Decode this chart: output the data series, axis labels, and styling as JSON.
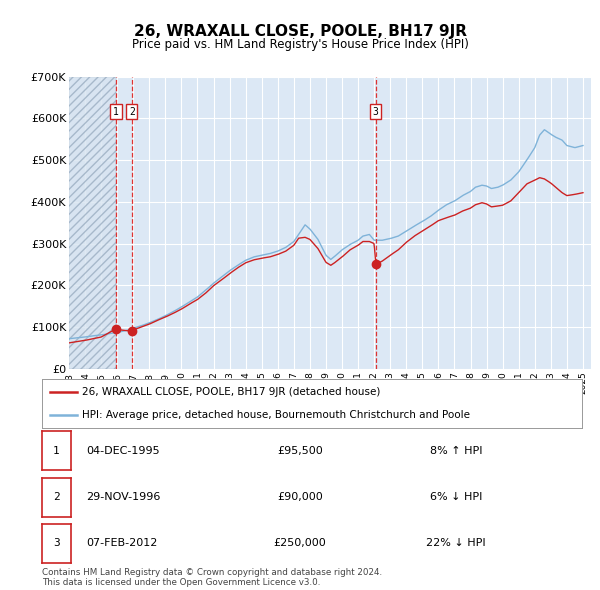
{
  "title": "26, WRAXALL CLOSE, POOLE, BH17 9JR",
  "subtitle": "Price paid vs. HM Land Registry's House Price Index (HPI)",
  "ylim": [
    0,
    700000
  ],
  "yticks": [
    0,
    100000,
    200000,
    300000,
    400000,
    500000,
    600000,
    700000
  ],
  "ytick_labels": [
    "£0",
    "£100K",
    "£200K",
    "£300K",
    "£400K",
    "£500K",
    "£600K",
    "£700K"
  ],
  "xlim_start": 1993.0,
  "xlim_end": 2025.5,
  "background_color": "#ffffff",
  "plot_bg_color": "#dce8f5",
  "grid_color": "#ffffff",
  "hpi_color": "#7fb3d9",
  "price_color": "#cc2222",
  "sale_marker_color": "#cc2222",
  "transaction_line_color": "#dd3333",
  "transactions": [
    {
      "id": "1",
      "date": 1995.92,
      "price": 95500
    },
    {
      "id": "2",
      "date": 1996.91,
      "price": 90000
    },
    {
      "id": "3",
      "date": 2012.1,
      "price": 250000
    }
  ],
  "table_entries": [
    {
      "id": "1",
      "date": "04-DEC-1995",
      "price": "£95,500",
      "change": "8% ↑ HPI"
    },
    {
      "id": "2",
      "date": "29-NOV-1996",
      "price": "£90,000",
      "change": "6% ↓ HPI"
    },
    {
      "id": "3",
      "date": "07-FEB-2012",
      "price": "£250,000",
      "change": "22% ↓ HPI"
    }
  ],
  "footer": "Contains HM Land Registry data © Crown copyright and database right 2024.\nThis data is licensed under the Open Government Licence v3.0.",
  "legend_line1": "26, WRAXALL CLOSE, POOLE, BH17 9JR (detached house)",
  "legend_line2": "HPI: Average price, detached house, Bournemouth Christchurch and Poole",
  "hatched_region_end": 1995.92,
  "hpi_anchors": [
    [
      1993.0,
      72000
    ],
    [
      1993.5,
      74000
    ],
    [
      1994.0,
      76000
    ],
    [
      1994.5,
      79000
    ],
    [
      1995.0,
      81000
    ],
    [
      1995.5,
      84000
    ],
    [
      1996.0,
      87000
    ],
    [
      1996.5,
      91000
    ],
    [
      1997.0,
      97000
    ],
    [
      1997.5,
      103000
    ],
    [
      1998.0,
      110000
    ],
    [
      1998.5,
      118000
    ],
    [
      1999.0,
      127000
    ],
    [
      1999.5,
      137000
    ],
    [
      2000.0,
      148000
    ],
    [
      2000.5,
      160000
    ],
    [
      2001.0,
      172000
    ],
    [
      2001.5,
      188000
    ],
    [
      2002.0,
      205000
    ],
    [
      2002.5,
      220000
    ],
    [
      2003.0,
      235000
    ],
    [
      2003.5,
      248000
    ],
    [
      2004.0,
      260000
    ],
    [
      2004.5,
      268000
    ],
    [
      2005.0,
      272000
    ],
    [
      2005.5,
      276000
    ],
    [
      2006.0,
      282000
    ],
    [
      2006.5,
      291000
    ],
    [
      2007.0,
      305000
    ],
    [
      2007.3,
      322000
    ],
    [
      2007.7,
      345000
    ],
    [
      2008.0,
      335000
    ],
    [
      2008.5,
      310000
    ],
    [
      2009.0,
      272000
    ],
    [
      2009.3,
      262000
    ],
    [
      2009.5,
      268000
    ],
    [
      2010.0,
      285000
    ],
    [
      2010.5,
      298000
    ],
    [
      2011.0,
      308000
    ],
    [
      2011.3,
      318000
    ],
    [
      2011.7,
      322000
    ],
    [
      2012.0,
      308000
    ],
    [
      2012.5,
      308000
    ],
    [
      2013.0,
      312000
    ],
    [
      2013.5,
      318000
    ],
    [
      2014.0,
      330000
    ],
    [
      2014.5,
      342000
    ],
    [
      2015.0,
      353000
    ],
    [
      2015.5,
      365000
    ],
    [
      2016.0,
      380000
    ],
    [
      2016.5,
      393000
    ],
    [
      2017.0,
      402000
    ],
    [
      2017.5,
      415000
    ],
    [
      2018.0,
      425000
    ],
    [
      2018.3,
      435000
    ],
    [
      2018.7,
      440000
    ],
    [
      2019.0,
      438000
    ],
    [
      2019.3,
      432000
    ],
    [
      2019.7,
      435000
    ],
    [
      2020.0,
      440000
    ],
    [
      2020.5,
      452000
    ],
    [
      2021.0,
      472000
    ],
    [
      2021.5,
      500000
    ],
    [
      2022.0,
      530000
    ],
    [
      2022.3,
      560000
    ],
    [
      2022.6,
      573000
    ],
    [
      2023.0,
      562000
    ],
    [
      2023.3,
      555000
    ],
    [
      2023.7,
      548000
    ],
    [
      2024.0,
      535000
    ],
    [
      2024.5,
      530000
    ],
    [
      2025.0,
      535000
    ]
  ],
  "price_anchors": [
    [
      1993.0,
      62000
    ],
    [
      1994.0,
      68000
    ],
    [
      1995.0,
      76000
    ],
    [
      1995.92,
      95500
    ],
    [
      1996.0,
      94000
    ],
    [
      1996.91,
      90000
    ],
    [
      1997.0,
      93000
    ],
    [
      1997.5,
      100000
    ],
    [
      1998.0,
      107000
    ],
    [
      1998.5,
      116000
    ],
    [
      1999.0,
      124000
    ],
    [
      1999.5,
      133000
    ],
    [
      2000.0,
      143000
    ],
    [
      2000.5,
      155000
    ],
    [
      2001.0,
      166000
    ],
    [
      2001.5,
      181000
    ],
    [
      2002.0,
      199000
    ],
    [
      2002.5,
      213000
    ],
    [
      2003.0,
      228000
    ],
    [
      2003.5,
      242000
    ],
    [
      2004.0,
      254000
    ],
    [
      2004.5,
      261000
    ],
    [
      2005.0,
      265000
    ],
    [
      2005.5,
      268000
    ],
    [
      2006.0,
      274000
    ],
    [
      2006.5,
      282000
    ],
    [
      2007.0,
      296000
    ],
    [
      2007.3,
      313000
    ],
    [
      2007.7,
      315000
    ],
    [
      2008.0,
      310000
    ],
    [
      2008.5,
      288000
    ],
    [
      2009.0,
      255000
    ],
    [
      2009.3,
      248000
    ],
    [
      2009.5,
      253000
    ],
    [
      2010.0,
      268000
    ],
    [
      2010.5,
      285000
    ],
    [
      2011.0,
      296000
    ],
    [
      2011.3,
      305000
    ],
    [
      2011.7,
      305000
    ],
    [
      2012.0,
      300000
    ],
    [
      2012.1,
      250000
    ],
    [
      2012.5,
      258000
    ],
    [
      2013.0,
      272000
    ],
    [
      2013.5,
      285000
    ],
    [
      2014.0,
      303000
    ],
    [
      2014.5,
      318000
    ],
    [
      2015.0,
      330000
    ],
    [
      2015.5,
      342000
    ],
    [
      2016.0,
      355000
    ],
    [
      2016.5,
      362000
    ],
    [
      2017.0,
      368000
    ],
    [
      2017.5,
      378000
    ],
    [
      2018.0,
      385000
    ],
    [
      2018.3,
      393000
    ],
    [
      2018.7,
      398000
    ],
    [
      2019.0,
      395000
    ],
    [
      2019.3,
      388000
    ],
    [
      2019.7,
      390000
    ],
    [
      2020.0,
      392000
    ],
    [
      2020.5,
      402000
    ],
    [
      2021.0,
      422000
    ],
    [
      2021.5,
      443000
    ],
    [
      2022.0,
      452000
    ],
    [
      2022.3,
      458000
    ],
    [
      2022.6,
      455000
    ],
    [
      2023.0,
      445000
    ],
    [
      2023.3,
      435000
    ],
    [
      2023.7,
      422000
    ],
    [
      2024.0,
      415000
    ],
    [
      2024.5,
      418000
    ],
    [
      2025.0,
      422000
    ]
  ]
}
